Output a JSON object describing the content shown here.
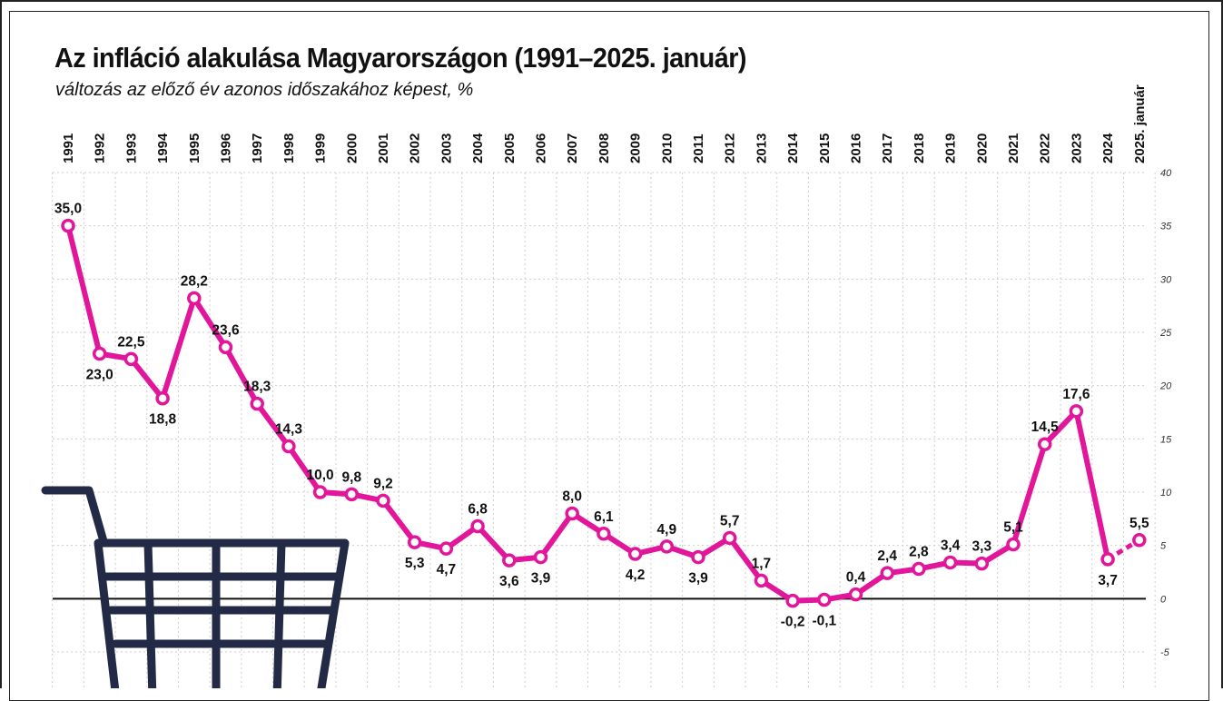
{
  "title": "Az infláció alakulása Magyarországon (1991–2025. január)",
  "subtitle": "változás az előző év azonos időszakához képest, %",
  "colors": {
    "line": "#e2169a",
    "marker_fill": "#ffffff",
    "cart": "#232a45",
    "grid": "#cfcfcf",
    "zero_line": "#111111"
  },
  "cart_icon": "shopping-cart-icon",
  "chart_data": {
    "type": "line",
    "categories": [
      "1991",
      "1992",
      "1993",
      "1994",
      "1995",
      "1996",
      "1997",
      "1998",
      "1999",
      "2000",
      "2001",
      "2002",
      "2003",
      "2004",
      "2005",
      "2006",
      "2007",
      "2008",
      "2009",
      "2010",
      "2011",
      "2012",
      "2013",
      "2014",
      "2015",
      "2016",
      "2017",
      "2018",
      "2019",
      "2020",
      "2021",
      "2022",
      "2023",
      "2024",
      "2025. január"
    ],
    "values": [
      35.0,
      23.0,
      22.5,
      18.8,
      28.2,
      23.6,
      18.3,
      14.3,
      10.0,
      9.8,
      9.2,
      5.3,
      4.7,
      6.8,
      3.6,
      3.9,
      8.0,
      6.1,
      4.2,
      4.9,
      3.9,
      5.7,
      1.7,
      -0.2,
      -0.1,
      0.4,
      2.4,
      2.8,
      3.4,
      3.3,
      5.1,
      14.5,
      17.6,
      3.7,
      5.5
    ],
    "value_labels": [
      "35,0",
      "23,0",
      "22,5",
      "18,8",
      "28,2",
      "23,6",
      "18,3",
      "14,3",
      "10,0",
      "9,8",
      "9,2",
      "5,3",
      "4,7",
      "6,8",
      "3,6",
      "3,9",
      "8,0",
      "6,1",
      "4,2",
      "4,9",
      "3,9",
      "5,7",
      "1,7",
      "-0,2",
      "-0,1",
      "0,4",
      "2,4",
      "2,8",
      "3,4",
      "3,3",
      "5,1",
      "14,5",
      "17,6",
      "3,7",
      "5,5"
    ],
    "label_position": [
      "above",
      "below",
      "above",
      "below",
      "above",
      "above",
      "above",
      "above",
      "above",
      "above",
      "above",
      "below",
      "below",
      "above",
      "below",
      "below",
      "above",
      "above",
      "below",
      "above",
      "below",
      "above",
      "above",
      "below",
      "below",
      "above",
      "above",
      "above",
      "above",
      "above",
      "above",
      "above",
      "above",
      "below",
      "above"
    ],
    "last_segment_style": "dashed",
    "yticks": [
      40,
      35,
      30,
      25,
      20,
      15,
      10,
      5,
      0,
      -5
    ],
    "ylim": [
      -5,
      40
    ],
    "xlabel": "",
    "ylabel": "",
    "grid": true,
    "legend": "none"
  }
}
